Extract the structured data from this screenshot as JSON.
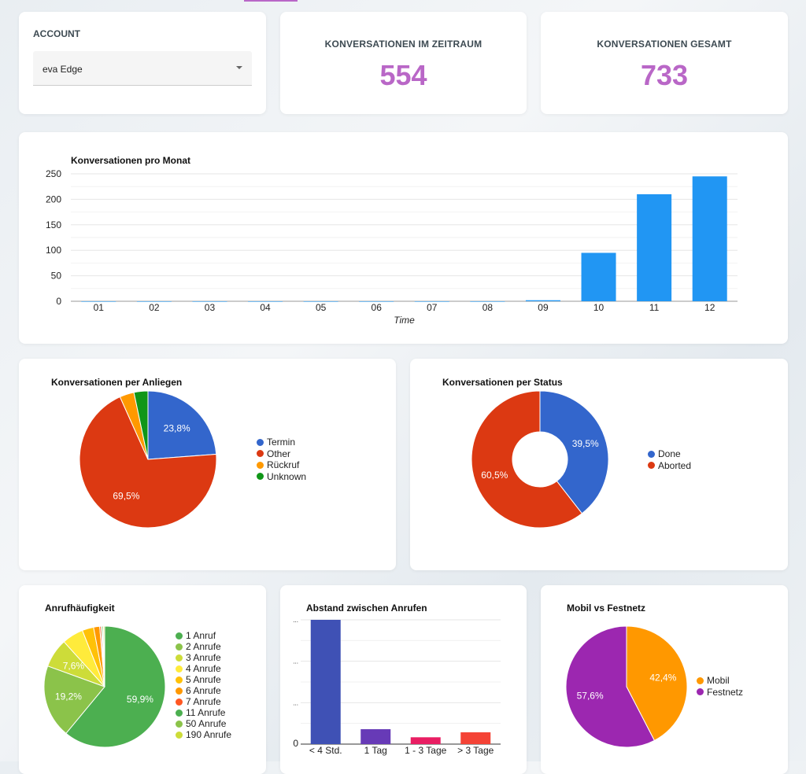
{
  "account": {
    "label": "ACCOUNT",
    "selected": "eva Edge"
  },
  "kpis": [
    {
      "label": "KONVERSATIONEN IM ZEITRAUM",
      "value": "554"
    },
    {
      "label": "KONVERSATIONEN GESAMT",
      "value": "733"
    }
  ],
  "colors": {
    "accent": "#b967c7"
  },
  "chart_data": [
    {
      "type": "bar",
      "title": "Konversationen pro Monat",
      "xlabel": "Time",
      "ylabel": "",
      "categories": [
        "01",
        "02",
        "03",
        "04",
        "05",
        "06",
        "07",
        "08",
        "09",
        "10",
        "11",
        "12"
      ],
      "values": [
        0,
        0,
        0,
        0,
        0,
        0,
        0,
        0,
        2,
        95,
        210,
        245
      ],
      "ylim": [
        0,
        250
      ],
      "yticks": [
        "0",
        "50",
        "100",
        "150",
        "200",
        "250"
      ],
      "grid": true,
      "color": "#2196f3"
    },
    {
      "type": "pie",
      "title": "Konversationen per Anliegen",
      "legend": "right",
      "labels": [
        "Termin",
        "Other",
        "Rückruf",
        "Unknown"
      ],
      "values": [
        23.8,
        69.5,
        3.4,
        3.3
      ],
      "data_labels": [
        "23,8%",
        "69,5%",
        "",
        ""
      ],
      "colors": [
        "#3366cc",
        "#dc3912",
        "#ff9900",
        "#109618"
      ]
    },
    {
      "type": "pie",
      "donut": true,
      "title": "Konversationen per Status",
      "legend": "right",
      "labels": [
        "Done",
        "Aborted"
      ],
      "values": [
        39.5,
        60.5
      ],
      "data_labels": [
        "39,5%",
        "60,5%"
      ],
      "colors": [
        "#3366cc",
        "#dc3912"
      ]
    },
    {
      "type": "pie",
      "title": "Anrufhäufigkeit",
      "legend": "right",
      "labels": [
        "1 Anruf",
        "2 Anrufe",
        "3 Anrufe",
        "4 Anrufe",
        "5 Anrufe",
        "6 Anrufe",
        "7 Anrufe",
        "11 Anrufe",
        "50 Anrufe",
        "190 Anrufe"
      ],
      "values": [
        59.9,
        19.2,
        7.6,
        5.6,
        3.0,
        1.6,
        0.4,
        0.3,
        0.3,
        0.3
      ],
      "data_labels": [
        "59,9%",
        "19,2%",
        "7,6%",
        "",
        "",
        "",
        "",
        "",
        "",
        ""
      ],
      "colors": [
        "#4caf50",
        "#8bc34a",
        "#cddc39",
        "#ffeb3b",
        "#ffc107",
        "#ff9800",
        "#ff5722",
        "#4caf50",
        "#8bc34a",
        "#cddc39"
      ]
    },
    {
      "type": "bar",
      "title": "Abstand zwischen Anrufen",
      "categories": [
        "< 4 Std.",
        "1 Tag",
        "1 - 3 Tage",
        "> 3 Tage"
      ],
      "values": [
        100,
        12,
        5.5,
        9.5
      ],
      "yticks": [
        "0",
        "...",
        "...",
        "..."
      ],
      "grid": true,
      "colors": [
        "#3f51b5",
        "#673ab7",
        "#e91e63",
        "#f44336"
      ]
    },
    {
      "type": "pie",
      "title": "Mobil vs Festnetz",
      "legend": "right",
      "labels": [
        "Mobil",
        "Festnetz"
      ],
      "values": [
        42.4,
        57.6
      ],
      "data_labels": [
        "42,4%",
        "57,6%"
      ],
      "colors": [
        "#ff9800",
        "#9c27b0"
      ]
    }
  ]
}
